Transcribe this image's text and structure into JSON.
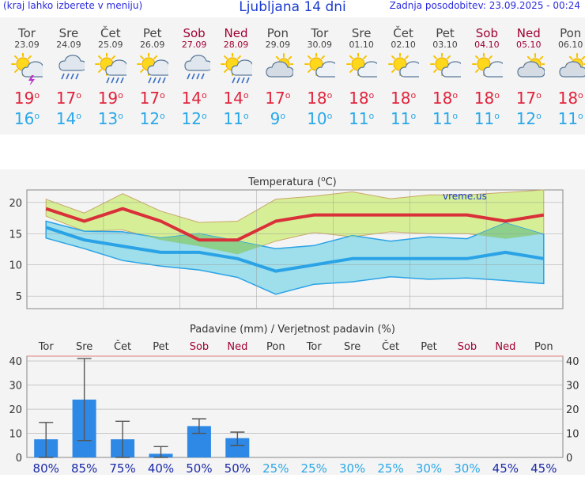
{
  "header": {
    "left_note": "(kraj lahko izberete v meniju)",
    "title": "Ljubljana 14 dni",
    "updated": "Zadnja posodobitev: 23.09.2025 - 00:24"
  },
  "degree_symbol": "o",
  "days": [
    {
      "name": "Tor",
      "date": "23.09",
      "icon": "sun-cloud-thunder-icon",
      "max": "19",
      "min": "16",
      "weekend": false
    },
    {
      "name": "Sre",
      "date": "24.09",
      "icon": "cloud-rain-icon",
      "max": "17",
      "min": "14",
      "weekend": false
    },
    {
      "name": "Čet",
      "date": "25.09",
      "icon": "sun-cloud-rain-icon",
      "max": "19",
      "min": "13",
      "weekend": false
    },
    {
      "name": "Pet",
      "date": "26.09",
      "icon": "sun-cloud-rain-icon",
      "max": "17",
      "min": "12",
      "weekend": false
    },
    {
      "name": "Sob",
      "date": "27.09",
      "icon": "cloud-rain-icon",
      "max": "14",
      "min": "12",
      "weekend": true
    },
    {
      "name": "Ned",
      "date": "28.09",
      "icon": "sun-cloud-rain-icon",
      "max": "14",
      "min": "11",
      "weekend": true
    },
    {
      "name": "Pon",
      "date": "29.09",
      "icon": "cloud-sun-icon",
      "max": "17",
      "min": "9",
      "weekend": false
    },
    {
      "name": "Tor",
      "date": "30.09",
      "icon": "sun-cloud-icon",
      "max": "18",
      "min": "10",
      "weekend": false
    },
    {
      "name": "Sre",
      "date": "01.10",
      "icon": "sun-cloud-icon",
      "max": "18",
      "min": "11",
      "weekend": false
    },
    {
      "name": "Čet",
      "date": "02.10",
      "icon": "sun-cloud-icon",
      "max": "18",
      "min": "11",
      "weekend": false
    },
    {
      "name": "Pet",
      "date": "03.10",
      "icon": "sun-cloud-icon",
      "max": "18",
      "min": "11",
      "weekend": false
    },
    {
      "name": "Sob",
      "date": "04.10",
      "icon": "sun-cloud-icon",
      "max": "18",
      "min": "11",
      "weekend": true
    },
    {
      "name": "Ned",
      "date": "05.10",
      "icon": "cloud-sun-icon",
      "max": "17",
      "min": "12",
      "weekend": true
    },
    {
      "name": "Pon",
      "date": "06.10",
      "icon": "cloud-sun-icon",
      "max": "18",
      "min": "11",
      "weekend": false
    }
  ],
  "colors": {
    "max_line": "#d9303a",
    "min_line": "#2aa3e6",
    "max_band": "#d6ee96",
    "min_band": "#96dcea",
    "overlap_band": "#8cd08c",
    "bar": "#2d88e6",
    "weekend": "#a00030",
    "prob": "#2aa8e8",
    "prob_high": "#1a2aa8"
  },
  "chart_data": [
    {
      "type": "line",
      "title": "Temperatura (",
      "title_unit": "C)",
      "watermark": "vreme.us",
      "x": [
        "23.09",
        "24.09",
        "25.09",
        "26.09",
        "27.09",
        "28.09",
        "29.09",
        "30.09",
        "01.10",
        "02.10",
        "03.10",
        "04.10",
        "05.10",
        "06.10"
      ],
      "ylim": [
        3,
        22
      ],
      "yticks": [
        5,
        10,
        15,
        20
      ],
      "series": [
        {
          "role": "max",
          "values": [
            19,
            17,
            19,
            17,
            14,
            14,
            17,
            18,
            18,
            18,
            18,
            18,
            17,
            18
          ]
        },
        {
          "role": "max_upper",
          "values": [
            20.5,
            18.3,
            21.4,
            18.6,
            16.8,
            17,
            20.5,
            21,
            21.7,
            20.6,
            21.2,
            21.2,
            21.6,
            22
          ]
        },
        {
          "role": "max_lower",
          "values": [
            17.8,
            15.4,
            15.6,
            14,
            13,
            11.7,
            13.8,
            15.2,
            14.5,
            15.3,
            15,
            15,
            14.2,
            15
          ]
        },
        {
          "role": "min",
          "values": [
            16,
            14,
            13,
            12,
            12,
            11,
            9,
            10,
            11,
            11,
            11,
            11,
            12,
            11
          ]
        },
        {
          "role": "min_upper",
          "values": [
            17,
            15.4,
            15.3,
            14.3,
            15,
            13.8,
            12.6,
            13.1,
            14.7,
            13.8,
            14.5,
            14.2,
            16.7,
            14.9
          ]
        },
        {
          "role": "min_lower",
          "values": [
            14.3,
            12.6,
            10.7,
            9.8,
            9.2,
            8,
            5.3,
            6.9,
            7.3,
            8.1,
            7.7,
            7.9,
            7.5,
            7
          ]
        }
      ]
    },
    {
      "type": "bar",
      "title": "Padavine (mm) / Verjetnost padavin (%)",
      "categories": [
        "Tor",
        "Sre",
        "Čet",
        "Pet",
        "Sob",
        "Ned",
        "Pon",
        "Tor",
        "Sre",
        "Čet",
        "Pet",
        "Sob",
        "Ned",
        "Pon"
      ],
      "values": [
        7.5,
        24,
        7.5,
        1.5,
        13,
        8,
        0,
        0,
        0,
        0,
        0,
        0,
        0,
        0
      ],
      "error_low": [
        0,
        7,
        0,
        0,
        10,
        5,
        0,
        0,
        0,
        0,
        0,
        0,
        0,
        0
      ],
      "error_high": [
        14.5,
        41,
        15,
        4.5,
        16,
        10.5,
        0,
        0,
        0,
        0,
        0,
        0,
        0,
        0
      ],
      "probabilities": [
        "80%",
        "85%",
        "75%",
        "40%",
        "50%",
        "50%",
        "25%",
        "25%",
        "30%",
        "25%",
        "30%",
        "30%",
        "45%",
        "45%"
      ],
      "ylim": [
        0,
        42
      ],
      "yticks": [
        0,
        10,
        20,
        30,
        40
      ]
    }
  ]
}
